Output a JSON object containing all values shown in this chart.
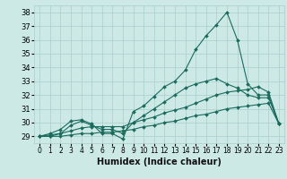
{
  "xlabel": "Humidex (Indice chaleur)",
  "ylabel": "",
  "xlim": [
    -0.5,
    23.5
  ],
  "ylim": [
    28.5,
    38.5
  ],
  "yticks": [
    29,
    30,
    31,
    32,
    33,
    34,
    35,
    36,
    37,
    38
  ],
  "xticks": [
    0,
    1,
    2,
    3,
    4,
    5,
    6,
    7,
    8,
    9,
    10,
    11,
    12,
    13,
    14,
    15,
    16,
    17,
    18,
    19,
    20,
    21,
    22,
    23
  ],
  "bg_color": "#cce9e6",
  "grid_color": "#aacfcc",
  "line_color": "#1a6b5e",
  "series_main": [
    29.0,
    29.2,
    29.5,
    30.1,
    30.2,
    29.9,
    29.2,
    29.2,
    28.8,
    30.8,
    31.2,
    31.9,
    32.6,
    33.0,
    33.8,
    35.3,
    36.3,
    37.1,
    38.0,
    36.0,
    32.8,
    32.0,
    32.0,
    29.9
  ],
  "series_low": [
    29.0,
    29.0,
    29.0,
    29.1,
    29.2,
    29.2,
    29.3,
    29.3,
    29.4,
    29.5,
    29.7,
    29.8,
    30.0,
    30.1,
    30.3,
    30.5,
    30.6,
    30.8,
    31.0,
    31.1,
    31.2,
    31.3,
    31.4,
    29.9
  ],
  "series_mid": [
    29.0,
    29.1,
    29.2,
    29.4,
    29.6,
    29.7,
    29.7,
    29.7,
    29.7,
    30.0,
    30.2,
    30.4,
    30.7,
    30.9,
    31.1,
    31.4,
    31.7,
    32.0,
    32.2,
    32.3,
    32.4,
    32.6,
    32.2,
    29.9
  ],
  "series_high": [
    29.0,
    29.0,
    29.2,
    29.8,
    30.1,
    29.8,
    29.5,
    29.5,
    29.2,
    30.0,
    30.5,
    31.0,
    31.5,
    32.0,
    32.5,
    32.8,
    33.0,
    33.2,
    32.8,
    32.5,
    32.0,
    31.8,
    31.8,
    29.9
  ],
  "font_size_xlabel": 7,
  "font_size_ticks_x": 5.5,
  "font_size_ticks_y": 6.0
}
